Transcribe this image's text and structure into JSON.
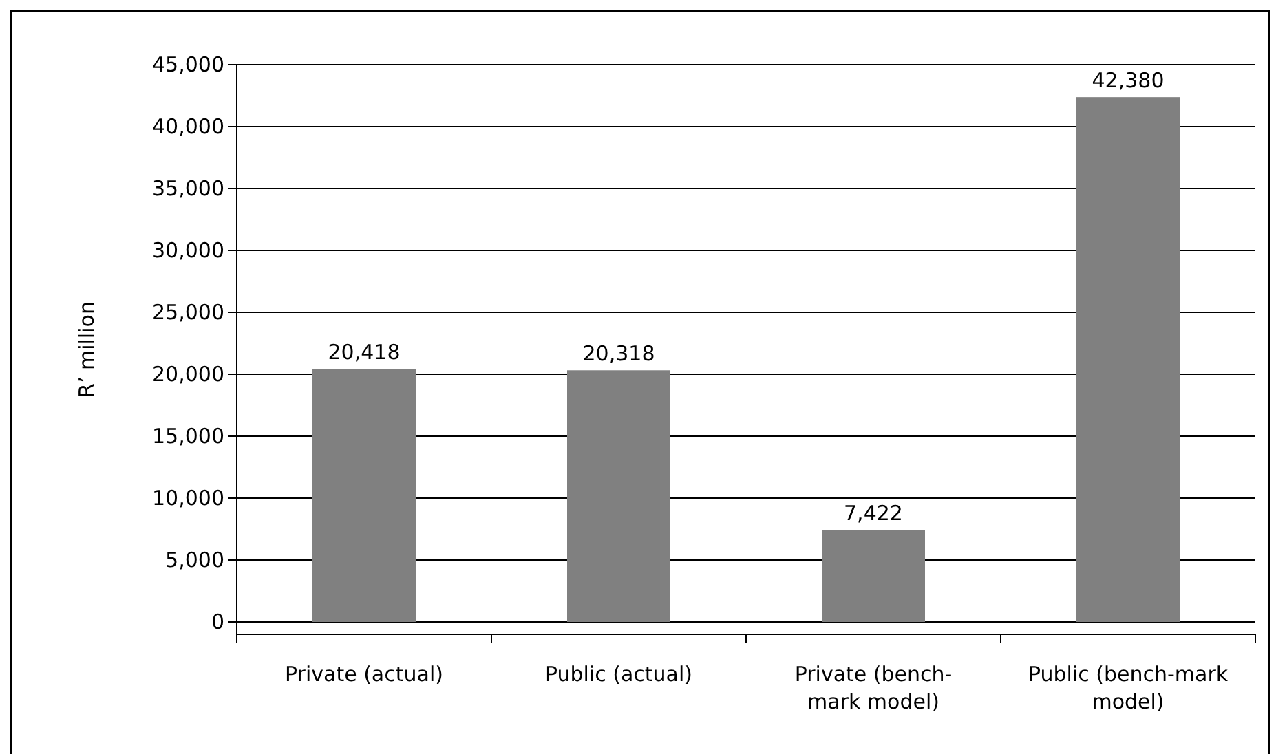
{
  "chart_data": {
    "type": "bar",
    "ylabel": "R’ million",
    "categories": [
      "Private (actual)",
      "Public (actual)",
      "Private (bench-mark model)",
      "Public (bench-mark model)"
    ],
    "values": [
      20418,
      20318,
      7422,
      42380
    ],
    "color": "#808080",
    "ylim": [
      -1000,
      45000
    ],
    "yticks": [
      {
        "value": 0,
        "label": "0"
      },
      {
        "value": 5000,
        "label": "5,000"
      },
      {
        "value": 10000,
        "label": "10,000"
      },
      {
        "value": 15000,
        "label": "15,000"
      },
      {
        "value": 20000,
        "label": "20,000"
      },
      {
        "value": 25000,
        "label": "25,000"
      },
      {
        "value": 30000,
        "label": "30,000"
      },
      {
        "value": 35000,
        "label": "35,000"
      },
      {
        "value": 40000,
        "label": "40,000"
      },
      {
        "value": 45000,
        "label": "45,000"
      }
    ],
    "grid": "y",
    "value_labels": [
      "20,418",
      "20,318",
      "7,422",
      "42,380"
    ]
  }
}
